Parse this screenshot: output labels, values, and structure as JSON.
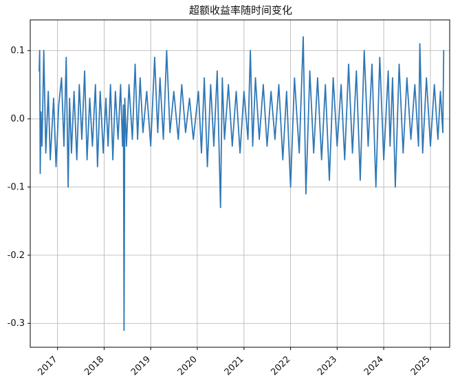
{
  "chart_data": {
    "type": "line",
    "title": "超额收益率随时间变化",
    "xlabel": "",
    "ylabel": "",
    "x_range": [
      "2016-06-01",
      "2025-06-01"
    ],
    "ylim": [
      -0.335,
      0.145
    ],
    "x_ticks": [
      "2017",
      "2018",
      "2019",
      "2020",
      "2021",
      "2022",
      "2023",
      "2024",
      "2025"
    ],
    "y_ticks": [
      {
        "value": 0.1,
        "label": "0.1"
      },
      {
        "value": 0.0,
        "label": "0.0"
      },
      {
        "value": -0.1,
        "label": "-0.1"
      },
      {
        "value": -0.2,
        "label": "-0.2"
      },
      {
        "value": -0.3,
        "label": "-0.3"
      }
    ],
    "grid": true,
    "color": "#2f77b5",
    "series": [
      {
        "x": [
          "2016-08-10",
          "2016-08-14",
          "2016-08-18",
          "2016-08-24",
          "2016-09-01",
          "2016-09-15",
          "2016-10-01",
          "2016-10-20",
          "2016-11-05",
          "2016-12-01",
          "2016-12-20",
          "2017-01-10",
          "2017-02-01",
          "2017-02-20",
          "2017-03-10",
          "2017-03-25",
          "2017-04-05",
          "2017-04-20",
          "2017-05-10",
          "2017-06-01",
          "2017-06-20",
          "2017-07-10",
          "2017-08-01",
          "2017-08-20",
          "2017-09-10",
          "2017-10-01",
          "2017-10-25",
          "2017-11-10",
          "2017-12-01",
          "2017-12-25",
          "2018-01-15",
          "2018-02-01",
          "2018-02-20",
          "2018-03-10",
          "2018-03-30",
          "2018-04-20",
          "2018-05-10",
          "2018-05-25",
          "2018-06-01",
          "2018-06-06",
          "2018-06-12",
          "2018-06-25",
          "2018-07-15",
          "2018-08-10",
          "2018-09-01",
          "2018-09-20",
          "2018-10-10",
          "2018-11-01",
          "2018-12-01",
          "2019-01-01",
          "2019-02-01",
          "2019-02-25",
          "2019-03-15",
          "2019-04-10",
          "2019-05-06",
          "2019-06-01",
          "2019-07-01",
          "2019-08-05",
          "2019-09-01",
          "2019-10-01",
          "2019-11-01",
          "2019-12-01",
          "2020-01-10",
          "2020-02-03",
          "2020-02-25",
          "2020-03-20",
          "2020-04-15",
          "2020-05-10",
          "2020-06-05",
          "2020-07-01",
          "2020-07-15",
          "2020-08-01",
          "2020-09-01",
          "2020-10-01",
          "2020-11-01",
          "2020-12-01",
          "2021-01-01",
          "2021-02-01",
          "2021-02-20",
          "2021-03-10",
          "2021-04-01",
          "2021-05-01",
          "2021-06-01",
          "2021-07-01",
          "2021-08-01",
          "2021-09-01",
          "2021-10-01",
          "2021-11-01",
          "2021-12-01",
          "2022-01-01",
          "2022-02-01",
          "2022-03-10",
          "2022-04-10",
          "2022-05-01",
          "2022-06-01",
          "2022-07-01",
          "2022-08-01",
          "2022-09-01",
          "2022-10-01",
          "2022-11-01",
          "2022-12-01",
          "2023-01-01",
          "2023-02-01",
          "2023-03-01",
          "2023-04-01",
          "2023-05-01",
          "2023-06-01",
          "2023-07-01",
          "2023-08-01",
          "2023-09-01",
          "2023-10-01",
          "2023-11-01",
          "2023-12-01",
          "2024-01-01",
          "2024-02-05",
          "2024-02-20",
          "2024-03-10",
          "2024-04-01",
          "2024-05-01",
          "2024-06-01",
          "2024-07-01",
          "2024-08-01",
          "2024-09-01",
          "2024-09-30",
          "2024-10-10",
          "2024-11-01",
          "2024-12-01",
          "2025-01-01",
          "2025-02-01",
          "2025-03-01",
          "2025-03-20",
          "2025-04-08",
          "2025-04-15"
        ],
        "y": [
          0.07,
          0.1,
          -0.08,
          0.01,
          -0.04,
          0.1,
          -0.05,
          0.04,
          -0.06,
          0.03,
          -0.07,
          0.02,
          0.06,
          -0.04,
          0.09,
          -0.1,
          0.03,
          -0.05,
          0.04,
          -0.06,
          0.05,
          -0.03,
          0.07,
          -0.06,
          0.03,
          -0.04,
          0.05,
          -0.07,
          0.04,
          -0.05,
          0.03,
          -0.04,
          0.05,
          -0.06,
          0.04,
          -0.03,
          0.05,
          -0.04,
          0.02,
          -0.31,
          0.03,
          -0.04,
          0.05,
          -0.03,
          0.08,
          -0.03,
          0.06,
          -0.02,
          0.04,
          -0.04,
          0.09,
          -0.02,
          0.06,
          -0.03,
          0.1,
          -0.02,
          0.04,
          -0.03,
          0.05,
          -0.02,
          0.03,
          -0.03,
          0.04,
          -0.05,
          0.06,
          -0.07,
          0.05,
          -0.04,
          0.07,
          -0.13,
          0.06,
          -0.03,
          0.05,
          -0.04,
          0.04,
          -0.05,
          0.04,
          -0.03,
          0.1,
          -0.04,
          0.06,
          -0.03,
          0.05,
          -0.04,
          0.04,
          -0.03,
          0.05,
          -0.06,
          0.04,
          -0.1,
          0.06,
          -0.05,
          0.12,
          -0.11,
          0.07,
          -0.05,
          0.06,
          -0.06,
          0.05,
          -0.09,
          0.06,
          -0.04,
          0.05,
          -0.06,
          0.08,
          -0.05,
          0.07,
          -0.09,
          0.1,
          -0.04,
          0.08,
          -0.1,
          0.09,
          -0.06,
          0.07,
          -0.04,
          0.06,
          -0.1,
          0.08,
          -0.05,
          0.06,
          -0.03,
          0.05,
          -0.04,
          0.11,
          -0.05,
          0.06,
          -0.04,
          0.05,
          -0.03,
          0.04,
          -0.02,
          0.1
        ]
      }
    ]
  }
}
